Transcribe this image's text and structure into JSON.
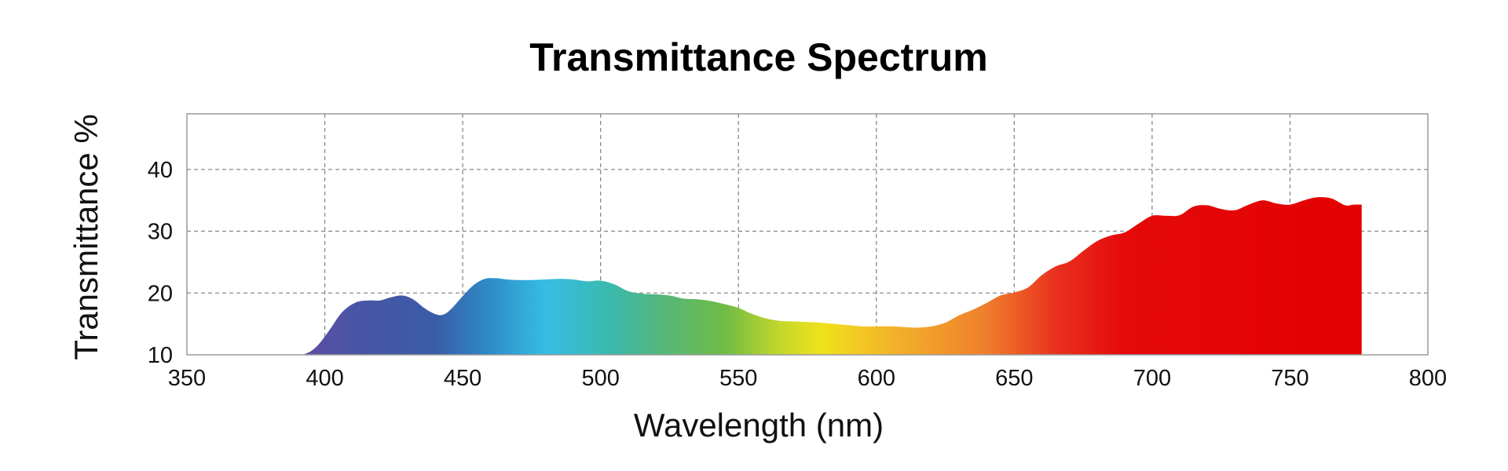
{
  "chart_data": {
    "type": "area",
    "title": "Transmittance Spectrum",
    "xlabel": "Wavelength (nm)",
    "ylabel": "Transmittance %",
    "xlim": [
      350,
      800
    ],
    "ylim": [
      10,
      49
    ],
    "xticks": [
      350,
      400,
      450,
      500,
      550,
      600,
      650,
      700,
      750,
      800
    ],
    "yticks": [
      10,
      20,
      30,
      40
    ],
    "grid": true,
    "fill": "visible spectrum gradient (violet to red)",
    "gradient_stops": [
      {
        "wavelength": 395,
        "color": "#5a4fa2"
      },
      {
        "wavelength": 410,
        "color": "#4a54a6"
      },
      {
        "wavelength": 440,
        "color": "#3a5ca8"
      },
      {
        "wavelength": 460,
        "color": "#2d8cc7"
      },
      {
        "wavelength": 480,
        "color": "#36bde5"
      },
      {
        "wavelength": 505,
        "color": "#3bb9a9"
      },
      {
        "wavelength": 520,
        "color": "#52b780"
      },
      {
        "wavelength": 545,
        "color": "#6fbc45"
      },
      {
        "wavelength": 565,
        "color": "#c4d72b"
      },
      {
        "wavelength": 580,
        "color": "#efe21b"
      },
      {
        "wavelength": 605,
        "color": "#f3b42a"
      },
      {
        "wavelength": 640,
        "color": "#ef7e2c"
      },
      {
        "wavelength": 665,
        "color": "#e9311e"
      },
      {
        "wavelength": 690,
        "color": "#e40a0a"
      },
      {
        "wavelength": 776,
        "color": "#e30000"
      }
    ],
    "series": [
      {
        "name": "Transmittance",
        "x": [
          392,
          395,
          398,
          402,
          405,
          408,
          412,
          416,
          420,
          424,
          428,
          432,
          436,
          440,
          443,
          446,
          450,
          454,
          458,
          462,
          466,
          470,
          475,
          480,
          485,
          490,
          495,
          500,
          505,
          510,
          515,
          520,
          525,
          530,
          535,
          540,
          545,
          550,
          555,
          560,
          565,
          570,
          575,
          580,
          585,
          590,
          595,
          600,
          605,
          610,
          615,
          620,
          625,
          630,
          635,
          640,
          645,
          650,
          655,
          660,
          665,
          670,
          675,
          680,
          685,
          690,
          695,
          700,
          705,
          710,
          715,
          720,
          725,
          730,
          735,
          740,
          745,
          750,
          755,
          760,
          765,
          770,
          773,
          776
        ],
        "y": [
          10,
          10.6,
          11.8,
          14.2,
          16.2,
          17.6,
          18.6,
          18.8,
          18.8,
          19.3,
          19.6,
          19.0,
          17.6,
          16.6,
          16.5,
          17.5,
          19.5,
          21.3,
          22.3,
          22.4,
          22.2,
          22.1,
          22.1,
          22.2,
          22.3,
          22.2,
          21.9,
          22.0,
          21.4,
          20.3,
          19.9,
          19.8,
          19.6,
          19.1,
          19.0,
          18.7,
          18.2,
          17.6,
          16.6,
          15.9,
          15.5,
          15.4,
          15.3,
          15.2,
          15.0,
          14.8,
          14.6,
          14.6,
          14.6,
          14.5,
          14.4,
          14.6,
          15.2,
          16.4,
          17.3,
          18.4,
          19.6,
          20.1,
          20.9,
          22.9,
          24.3,
          25.1,
          26.8,
          28.4,
          29.3,
          29.8,
          31.2,
          32.5,
          32.5,
          32.6,
          34.0,
          34.2,
          33.6,
          33.4,
          34.3,
          35.0,
          34.5,
          34.3,
          35.0,
          35.5,
          35.3,
          34.2,
          34.3,
          34.3
        ]
      }
    ]
  }
}
